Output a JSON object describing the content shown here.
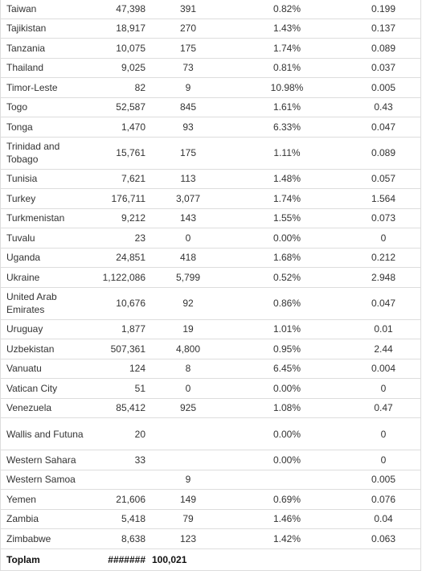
{
  "table": {
    "rows": [
      [
        "Taiwan",
        "47,398",
        "391",
        "0.82%",
        "0.199"
      ],
      [
        "Tajikistan",
        "18,917",
        "270",
        "1.43%",
        "0.137"
      ],
      [
        "Tanzania",
        "10,075",
        "175",
        "1.74%",
        "0.089"
      ],
      [
        "Thailand",
        "9,025",
        "73",
        "0.81%",
        "0.037"
      ],
      [
        "Timor-Leste",
        "82",
        "9",
        "10.98%",
        "0.005"
      ],
      [
        "Togo",
        "52,587",
        "845",
        "1.61%",
        "0.43"
      ],
      [
        "Tonga",
        "1,470",
        "93",
        "6.33%",
        "0.047"
      ],
      [
        "Trinidad and Tobago",
        "15,761",
        "175",
        "1.11%",
        "0.089"
      ],
      [
        "Tunisia",
        "7,621",
        "113",
        "1.48%",
        "0.057"
      ],
      [
        "Turkey",
        "176,711",
        "3,077",
        "1.74%",
        "1.564"
      ],
      [
        "Turkmenistan",
        "9,212",
        "143",
        "1.55%",
        "0.073"
      ],
      [
        "Tuvalu",
        "23",
        "0",
        "0.00%",
        "0"
      ],
      [
        "Uganda",
        "24,851",
        "418",
        "1.68%",
        "0.212"
      ],
      [
        "Ukraine",
        "1,122,086",
        "5,799",
        "0.52%",
        "2.948"
      ],
      [
        "United Arab Emirates",
        "10,676",
        "92",
        "0.86%",
        "0.047"
      ],
      [
        "Uruguay",
        "1,877",
        "19",
        "1.01%",
        "0.01"
      ],
      [
        "Uzbekistan",
        "507,361",
        "4,800",
        "0.95%",
        "2.44"
      ],
      [
        "Vanuatu",
        "124",
        "8",
        "6.45%",
        "0.004"
      ],
      [
        "Vatican City",
        "51",
        "0",
        "0.00%",
        "0"
      ],
      [
        "Venezuela",
        "85,412",
        "925",
        "1.08%",
        "0.47"
      ],
      [
        "Wallis and Futuna",
        "20",
        null,
        "0.00%",
        "0"
      ],
      [
        "Western Sahara",
        "33",
        null,
        "0.00%",
        "0"
      ],
      [
        "Western Samoa",
        null,
        "9",
        null,
        "0.005"
      ],
      [
        "Yemen",
        "21,606",
        "149",
        "0.69%",
        "0.076"
      ],
      [
        "Zambia",
        "5,418",
        "79",
        "1.46%",
        "0.04"
      ],
      [
        "Zimbabwe",
        "8,638",
        "123",
        "1.42%",
        "0.063"
      ]
    ],
    "total": [
      "Toplam",
      "#######",
      "100,021"
    ]
  }
}
